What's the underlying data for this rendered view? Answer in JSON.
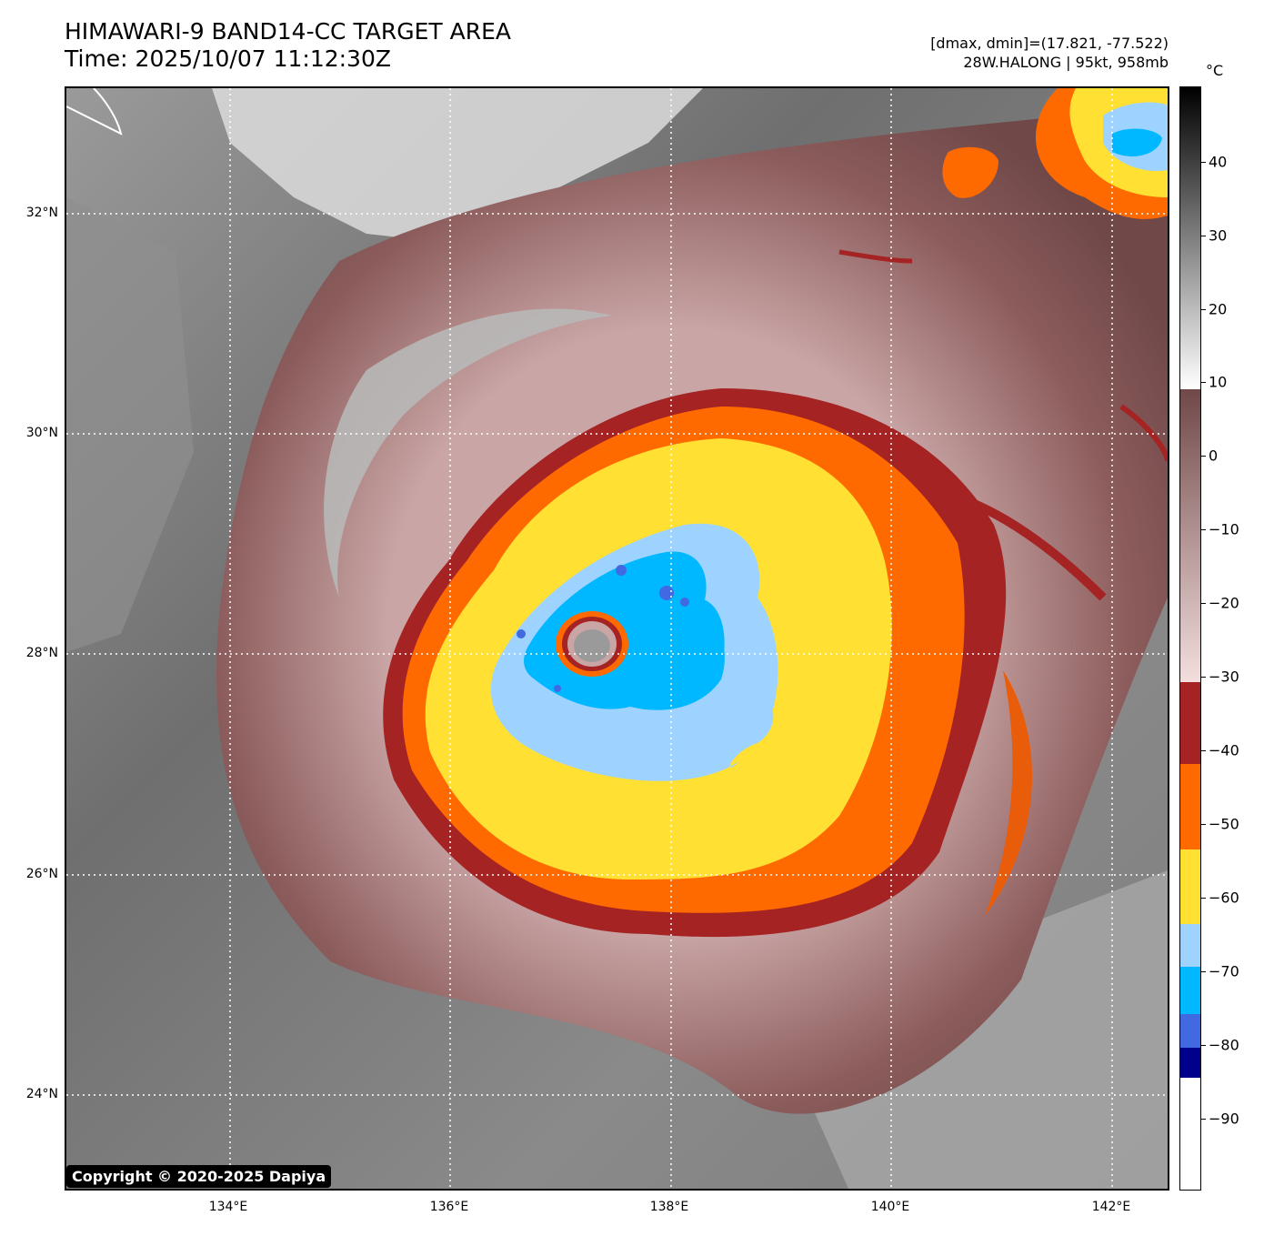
{
  "header": {
    "title_line1": "HIMAWARI-9 BAND14-CC TARGET AREA",
    "title_line2": "Time: 2025/10/07 11:12:30Z",
    "meta_line1": "[dmax, dmin]=(17.821, -77.522)",
    "meta_line2": "28W.HALONG | 95kt, 958mb"
  },
  "map": {
    "lat_labels": [
      "32°N",
      "30°N",
      "28°N",
      "26°N",
      "24°N"
    ],
    "lon_labels": [
      "134°E",
      "136°E",
      "138°E",
      "140°E",
      "142°E"
    ],
    "copyright": "Copyright © 2020-2025 Dapiya"
  },
  "colorbar": {
    "unit": "°C",
    "ticks": [
      "40",
      "30",
      "20",
      "10",
      "0",
      "−10",
      "−20",
      "−30",
      "−40",
      "−50",
      "−60",
      "−70",
      "−80",
      "−90"
    ],
    "colors": {
      "warm_black": "#000000",
      "warm_white": "#ffffff",
      "brown_dark": "#704848",
      "brown_light": "#f3dede",
      "dark_red": "#a52323",
      "orange": "#ff6a00",
      "yellow": "#ffe033",
      "light_blue": "#9fd3ff",
      "cyan": "#00b8ff",
      "royal_blue": "#4169e1",
      "navy": "#00008b",
      "cold_white": "#ffffff"
    }
  }
}
